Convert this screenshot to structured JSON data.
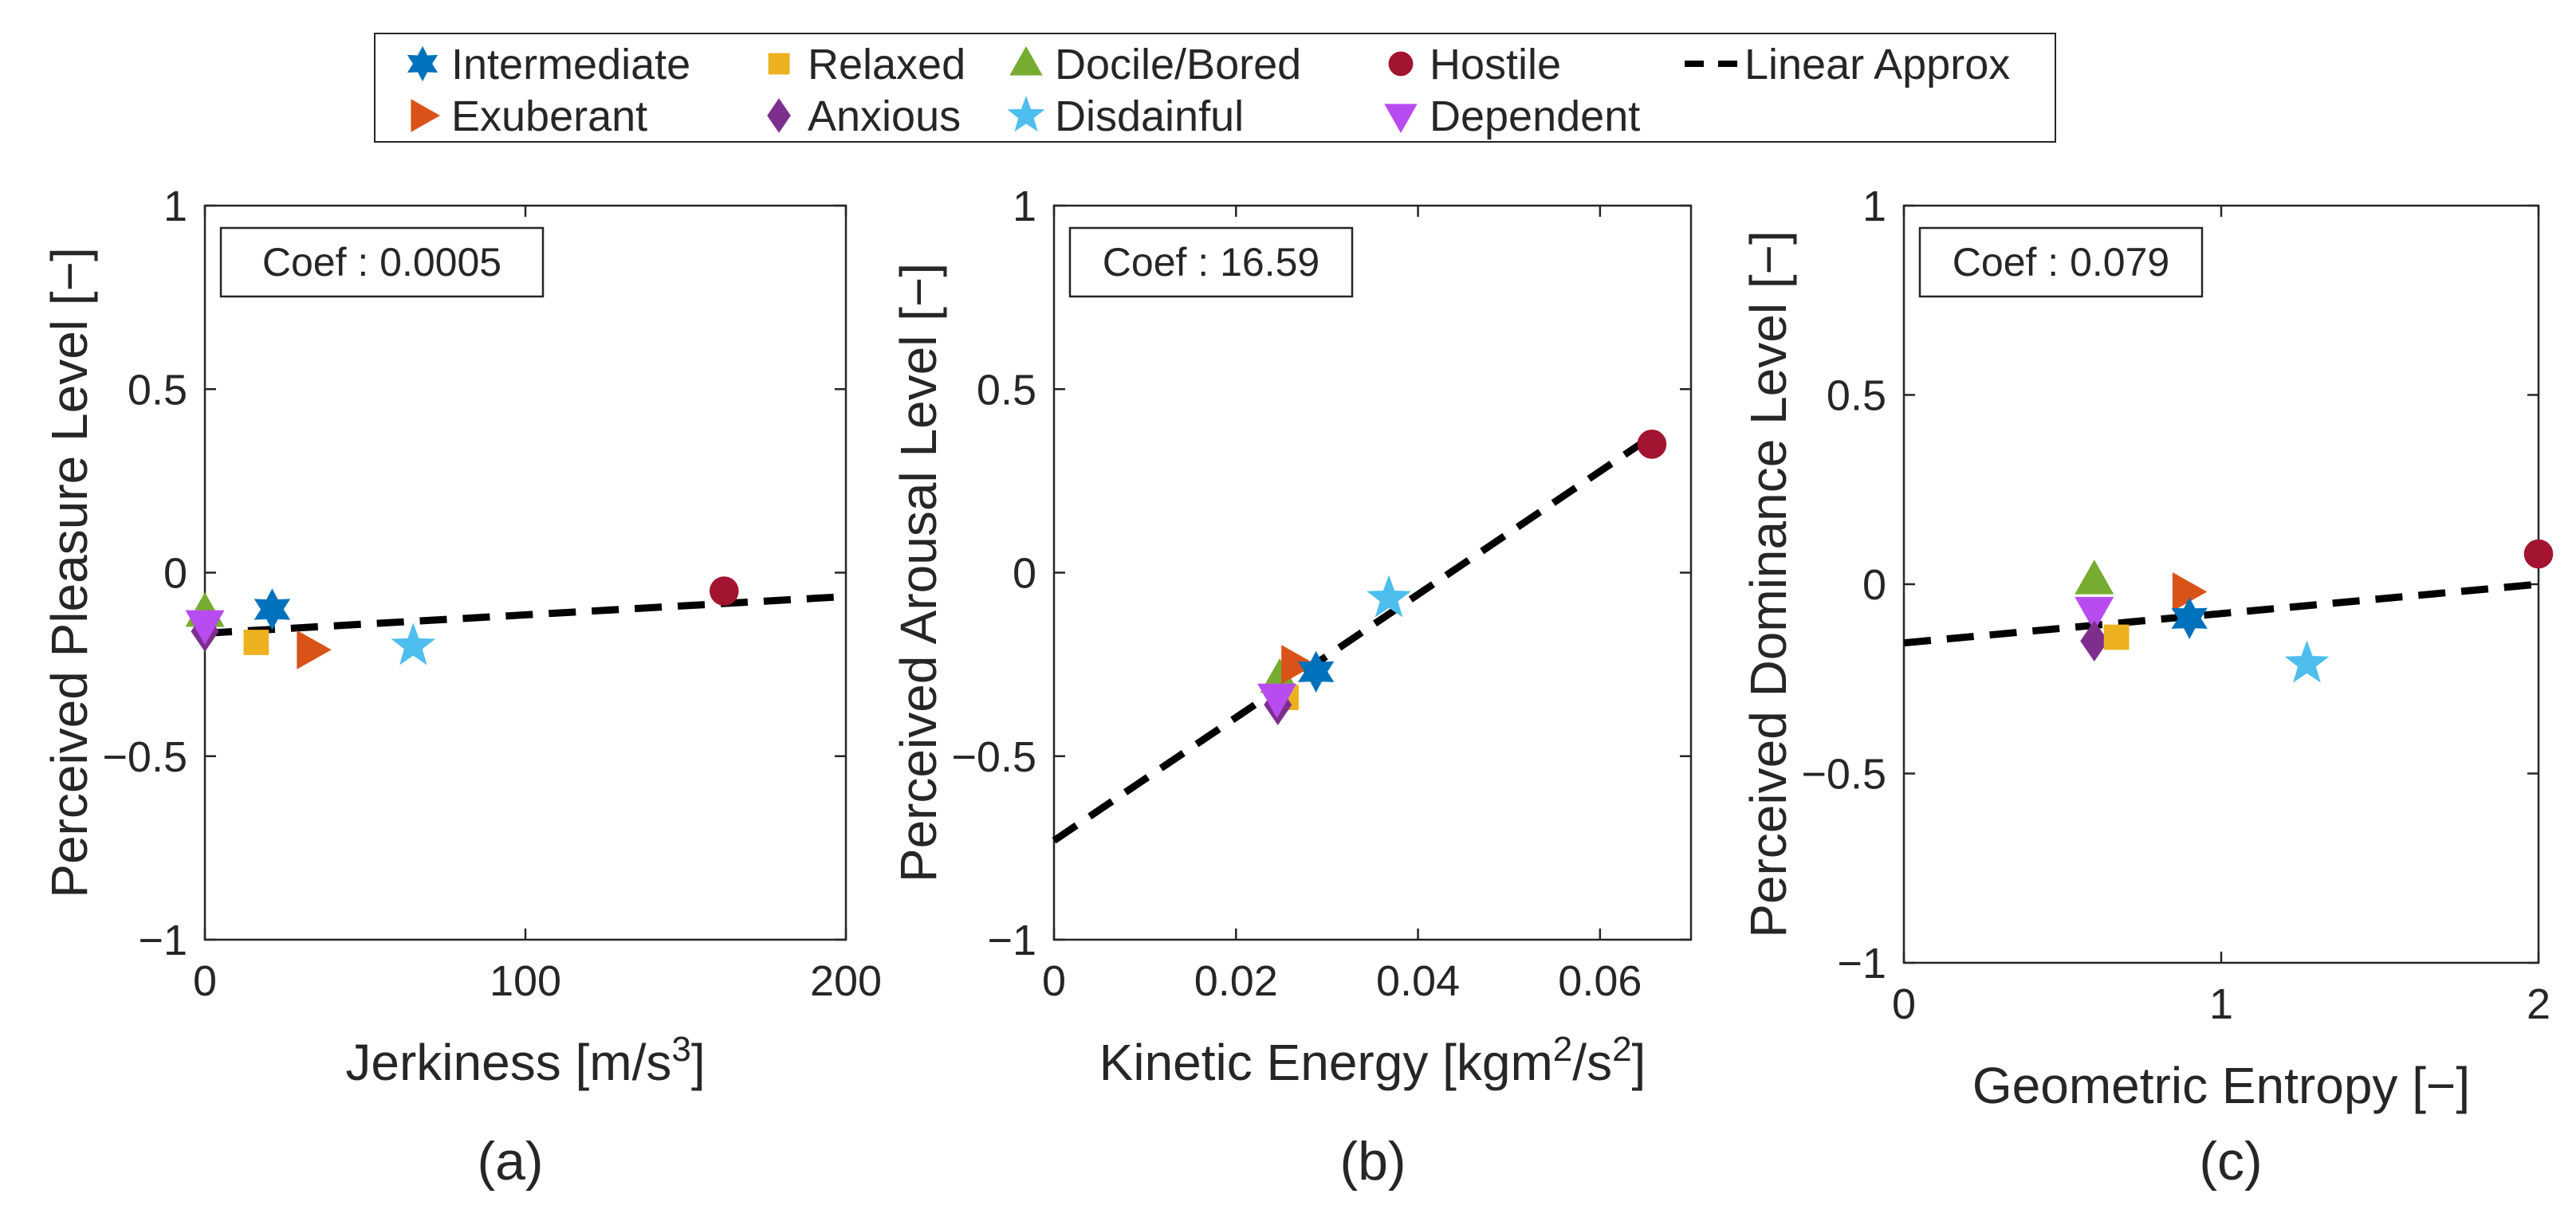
{
  "legend": {
    "items": [
      {
        "key": "intermediate",
        "label": "Intermediate",
        "marker": "hexagram",
        "color": "#0072BD"
      },
      {
        "key": "relaxed",
        "label": "Relaxed",
        "marker": "square",
        "color": "#EDB120"
      },
      {
        "key": "docile",
        "label": "Docile/Bored",
        "marker": "triangle-up",
        "color": "#77AC30"
      },
      {
        "key": "hostile",
        "label": "Hostile",
        "marker": "circle",
        "color": "#A2142F"
      },
      {
        "key": "linear",
        "label": "Linear Approx",
        "marker": "dashed-line",
        "color": "#000000"
      },
      {
        "key": "exuberant",
        "label": "Exuberant",
        "marker": "triangle-right",
        "color": "#D95319"
      },
      {
        "key": "anxious",
        "label": "Anxious",
        "marker": "diamond",
        "color": "#7E2F8E"
      },
      {
        "key": "disdainful",
        "label": "Disdainful",
        "marker": "pentagram",
        "color": "#4DBEEE"
      },
      {
        "key": "dependent",
        "label": "Dependent",
        "marker": "triangle-down",
        "color": "#B94CF0"
      }
    ]
  },
  "chart_data": [
    {
      "type": "scatter",
      "panel": "(a)",
      "xlabel": "Jerkiness [m/s",
      "xlabel_sup": "3",
      "xlabel_end": "]",
      "ylabel": "Perceived Pleasure Level [−]",
      "xlim": [
        0,
        200
      ],
      "ylim": [
        -1,
        1
      ],
      "xticks": [
        0,
        100,
        200
      ],
      "xtick_labels": [
        "0",
        "100",
        "200"
      ],
      "yticks": [
        -1,
        -0.5,
        0,
        0.5,
        1
      ],
      "ytick_labels": [
        "−1",
        "−0.5",
        "0",
        "0.5",
        "1"
      ],
      "coef_text": "Coef : 0.0005",
      "linear_approx": {
        "x": [
          0,
          200
        ],
        "y": [
          -0.165,
          -0.065
        ]
      },
      "points": [
        {
          "key": "docile",
          "x": 0,
          "y": -0.11
        },
        {
          "key": "anxious",
          "x": 0,
          "y": -0.16
        },
        {
          "key": "dependent",
          "x": 0,
          "y": -0.14
        },
        {
          "key": "relaxed",
          "x": 16,
          "y": -0.19
        },
        {
          "key": "intermediate",
          "x": 21,
          "y": -0.1
        },
        {
          "key": "exuberant",
          "x": 33,
          "y": -0.21
        },
        {
          "key": "disdainful",
          "x": 65,
          "y": -0.2
        },
        {
          "key": "hostile",
          "x": 162,
          "y": -0.05
        }
      ]
    },
    {
      "type": "scatter",
      "panel": "(b)",
      "xlabel": "Kinetic Energy [kgm",
      "xlabel_sup": "2",
      "xlabel_mid": "/s",
      "xlabel_sup2": "2",
      "xlabel_end": "]",
      "ylabel": "Perceived Arousal Level [−]",
      "xlim": [
        0,
        0.07
      ],
      "ylim": [
        -1,
        1
      ],
      "xticks": [
        0,
        0.02,
        0.04,
        0.06
      ],
      "xtick_labels": [
        "0",
        "0.02",
        "0.04",
        "0.06"
      ],
      "yticks": [
        -1,
        -0.5,
        0,
        0.5,
        1
      ],
      "ytick_labels": [
        "−1",
        "−0.5",
        "0",
        "0.5",
        "1"
      ],
      "coef_text": "Coef : 16.59",
      "linear_approx": {
        "x": [
          0,
          0.0665
        ],
        "y": [
          -0.73,
          0.385
        ]
      },
      "points": [
        {
          "key": "docile",
          "x": 0.0248,
          "y": -0.29
        },
        {
          "key": "relaxed",
          "x": 0.0255,
          "y": -0.34
        },
        {
          "key": "anxious",
          "x": 0.0246,
          "y": -0.36
        },
        {
          "key": "dependent",
          "x": 0.0245,
          "y": -0.34
        },
        {
          "key": "exuberant",
          "x": 0.0265,
          "y": -0.25
        },
        {
          "key": "intermediate",
          "x": 0.0288,
          "y": -0.27
        },
        {
          "key": "disdainful",
          "x": 0.0368,
          "y": -0.07
        },
        {
          "key": "hostile",
          "x": 0.0657,
          "y": 0.35
        }
      ]
    },
    {
      "type": "scatter",
      "panel": "(c)",
      "xlabel": "Geometric Entropy [−]",
      "ylabel": "Perceived Dominance Level [−]",
      "xlim": [
        0,
        2
      ],
      "ylim": [
        -1,
        1
      ],
      "xticks": [
        0,
        1,
        2
      ],
      "xtick_labels": [
        "0",
        "1",
        "2"
      ],
      "yticks": [
        -1,
        -0.5,
        0,
        0.5,
        1
      ],
      "ytick_labels": [
        "−1",
        "−0.5",
        "0",
        "0.5",
        "1"
      ],
      "coef_text": "Coef : 0.079",
      "linear_approx": {
        "x": [
          0,
          2
        ],
        "y": [
          -0.155,
          0.0
        ]
      },
      "points": [
        {
          "key": "docile",
          "x": 0.6,
          "y": 0.01
        },
        {
          "key": "dependent",
          "x": 0.6,
          "y": -0.07
        },
        {
          "key": "anxious",
          "x": 0.6,
          "y": -0.15
        },
        {
          "key": "relaxed",
          "x": 0.67,
          "y": -0.14
        },
        {
          "key": "exuberant",
          "x": 0.89,
          "y": -0.02
        },
        {
          "key": "intermediate",
          "x": 0.9,
          "y": -0.09
        },
        {
          "key": "disdainful",
          "x": 1.27,
          "y": -0.21
        },
        {
          "key": "hostile",
          "x": 2.0,
          "y": 0.08
        }
      ]
    }
  ]
}
